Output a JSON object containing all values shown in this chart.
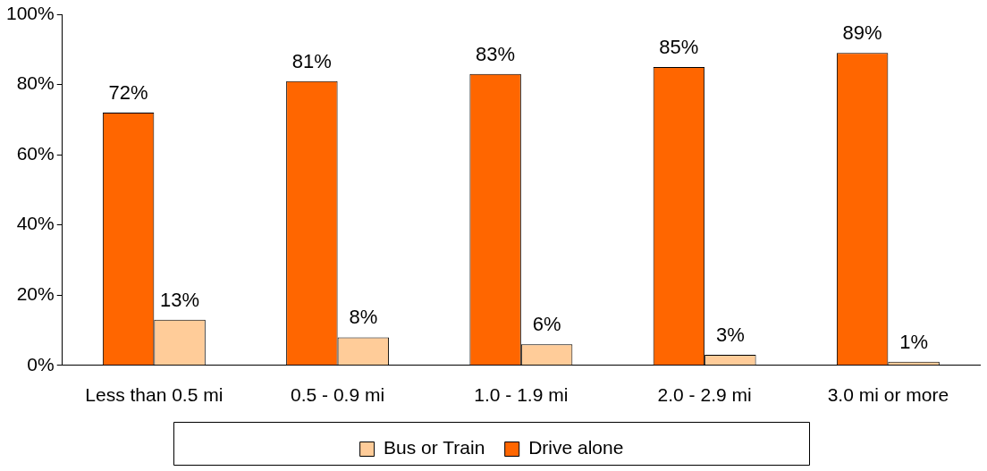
{
  "chart_data": {
    "type": "bar",
    "categories": [
      "Less than 0.5 mi",
      "0.5 - 0.9 mi",
      "1.0 - 1.9 mi",
      "2.0 - 2.9 mi",
      "3.0 mi or more"
    ],
    "series": [
      {
        "name": "Drive alone",
        "color": "#ff6600",
        "values": [
          72,
          81,
          83,
          85,
          89
        ],
        "value_labels": [
          "72%",
          "81%",
          "83%",
          "85%",
          "89%"
        ]
      },
      {
        "name": "Bus or Train",
        "color": "#ffcc99",
        "values": [
          13,
          8,
          6,
          3,
          1
        ],
        "value_labels": [
          "13%",
          "8%",
          "6%",
          "3%",
          "1%"
        ]
      }
    ],
    "ylim": [
      0,
      100
    ],
    "yticks": [
      {
        "value": 0,
        "label": "0%"
      },
      {
        "value": 20,
        "label": "20%"
      },
      {
        "value": 40,
        "label": "40%"
      },
      {
        "value": 60,
        "label": "60%"
      },
      {
        "value": 80,
        "label": "80%"
      },
      {
        "value": 100,
        "label": "100%"
      }
    ],
    "grid": false,
    "legend": "bottom"
  }
}
